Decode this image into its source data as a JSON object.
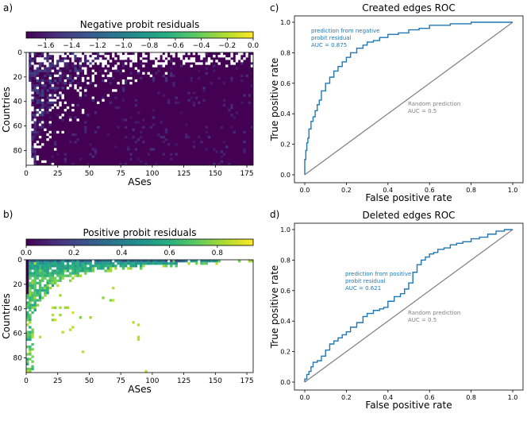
{
  "panels": {
    "a": "a)",
    "b": "b)",
    "c": "c)",
    "d": "d)"
  },
  "colors": {
    "axis": "#000000",
    "roc_line": "#1f77b4",
    "random_line": "#7f7f7f",
    "heat_low": "#440154",
    "heat_high": "#fde725",
    "annotation_blue": "#1f77b4",
    "annotation_gray": "#7f7f7f"
  },
  "chart_data": [
    {
      "id": "a",
      "type": "heatmap",
      "title": "Negative probit residuals",
      "xlabel": "ASes",
      "ylabel": "Countries",
      "xticks": [
        "0",
        "25",
        "50",
        "75",
        "100",
        "125",
        "150",
        "175"
      ],
      "yticks": [
        "0",
        "20",
        "40",
        "60",
        "80"
      ],
      "xlim": [
        0,
        180
      ],
      "ylim": [
        0,
        92
      ],
      "colorbar": {
        "label": "Negative probit residuals",
        "range": [
          -1.75,
          0
        ],
        "ticks": [
          "−1.6",
          "−1.4",
          "−1.2",
          "−1.0",
          "−0.8",
          "−0.6",
          "−0.4",
          "−0.2",
          "0.0"
        ],
        "tick_values": [
          -1.6,
          -1.4,
          -1.2,
          -1.0,
          -0.8,
          -0.6,
          -0.4,
          -0.2,
          0.0
        ],
        "colormap": "viridis",
        "placement": "top"
      }
    },
    {
      "id": "b",
      "type": "heatmap",
      "title": "Positive probit residuals",
      "xlabel": "ASes",
      "ylabel": "Countries",
      "xticks": [
        "0",
        "25",
        "50",
        "75",
        "100",
        "125",
        "150",
        "175"
      ],
      "yticks": [
        "0",
        "20",
        "40",
        "60",
        "80"
      ],
      "xlim": [
        0,
        180
      ],
      "ylim": [
        0,
        92
      ],
      "colorbar": {
        "label": "Positive probit residuals",
        "range": [
          0,
          0.95
        ],
        "ticks": [
          "0.0",
          "0.2",
          "0.4",
          "0.6",
          "0.8"
        ],
        "tick_values": [
          0.0,
          0.2,
          0.4,
          0.6,
          0.8
        ],
        "colormap": "viridis",
        "placement": "top"
      }
    },
    {
      "id": "c",
      "type": "line",
      "title": "Created edges ROC",
      "xlabel": "False positive rate",
      "ylabel": "True positive rate",
      "xlim": [
        0,
        1
      ],
      "ylim": [
        0,
        1
      ],
      "xticks": [
        "0.0",
        "0.2",
        "0.4",
        "0.6",
        "0.8",
        "1.0"
      ],
      "yticks": [
        "0.0",
        "0.2",
        "0.4",
        "0.6",
        "0.8",
        "1.0"
      ],
      "series": [
        {
          "label_lines": [
            "prediction from negative",
            "probit residual",
            "AUC = 0.875"
          ],
          "x": [
            0,
            0.005,
            0.01,
            0.015,
            0.02,
            0.03,
            0.04,
            0.05,
            0.06,
            0.07,
            0.08,
            0.1,
            0.12,
            0.14,
            0.16,
            0.18,
            0.2,
            0.22,
            0.25,
            0.28,
            0.3,
            0.33,
            0.36,
            0.4,
            0.45,
            0.5,
            0.55,
            0.6,
            0.7,
            0.8,
            0.9,
            1.0
          ],
          "y": [
            0,
            0.1,
            0.16,
            0.21,
            0.24,
            0.3,
            0.35,
            0.38,
            0.42,
            0.46,
            0.49,
            0.55,
            0.6,
            0.64,
            0.68,
            0.71,
            0.74,
            0.77,
            0.8,
            0.83,
            0.85,
            0.87,
            0.88,
            0.9,
            0.92,
            0.93,
            0.95,
            0.96,
            0.98,
            0.99,
            1.0,
            1.0
          ]
        },
        {
          "label_lines": [
            "Random prediction",
            "AUC = 0.5"
          ],
          "x": [
            0,
            1
          ],
          "y": [
            0,
            1
          ]
        }
      ]
    },
    {
      "id": "d",
      "type": "line",
      "title": "Deleted edges ROC",
      "xlabel": "False positive rate",
      "ylabel": "True positive rate",
      "xlim": [
        0,
        1
      ],
      "ylim": [
        0,
        1
      ],
      "xticks": [
        "0.0",
        "0.2",
        "0.4",
        "0.6",
        "0.8",
        "1.0"
      ],
      "yticks": [
        "0.0",
        "0.2",
        "0.4",
        "0.6",
        "0.8",
        "1.0"
      ],
      "series": [
        {
          "label_lines": [
            "prediction from positive",
            "probit residual",
            "AUC = 0.621"
          ],
          "x": [
            0,
            0.01,
            0.02,
            0.03,
            0.04,
            0.06,
            0.08,
            0.1,
            0.12,
            0.14,
            0.16,
            0.18,
            0.2,
            0.22,
            0.25,
            0.28,
            0.3,
            0.33,
            0.36,
            0.38,
            0.4,
            0.43,
            0.46,
            0.48,
            0.5,
            0.52,
            0.54,
            0.56,
            0.58,
            0.6,
            0.62,
            0.64,
            0.67,
            0.7,
            0.73,
            0.76,
            0.8,
            0.84,
            0.88,
            0.92,
            0.96,
            1.0
          ],
          "y": [
            0,
            0.02,
            0.05,
            0.07,
            0.1,
            0.13,
            0.14,
            0.17,
            0.21,
            0.25,
            0.27,
            0.29,
            0.31,
            0.33,
            0.36,
            0.39,
            0.43,
            0.45,
            0.47,
            0.48,
            0.49,
            0.53,
            0.56,
            0.58,
            0.61,
            0.65,
            0.72,
            0.77,
            0.8,
            0.82,
            0.84,
            0.85,
            0.87,
            0.88,
            0.9,
            0.91,
            0.92,
            0.94,
            0.95,
            0.97,
            0.99,
            1.0
          ]
        },
        {
          "label_lines": [
            "Random prediction",
            "AUC = 0.5"
          ],
          "x": [
            0,
            1
          ],
          "y": [
            0,
            1
          ]
        }
      ]
    }
  ]
}
